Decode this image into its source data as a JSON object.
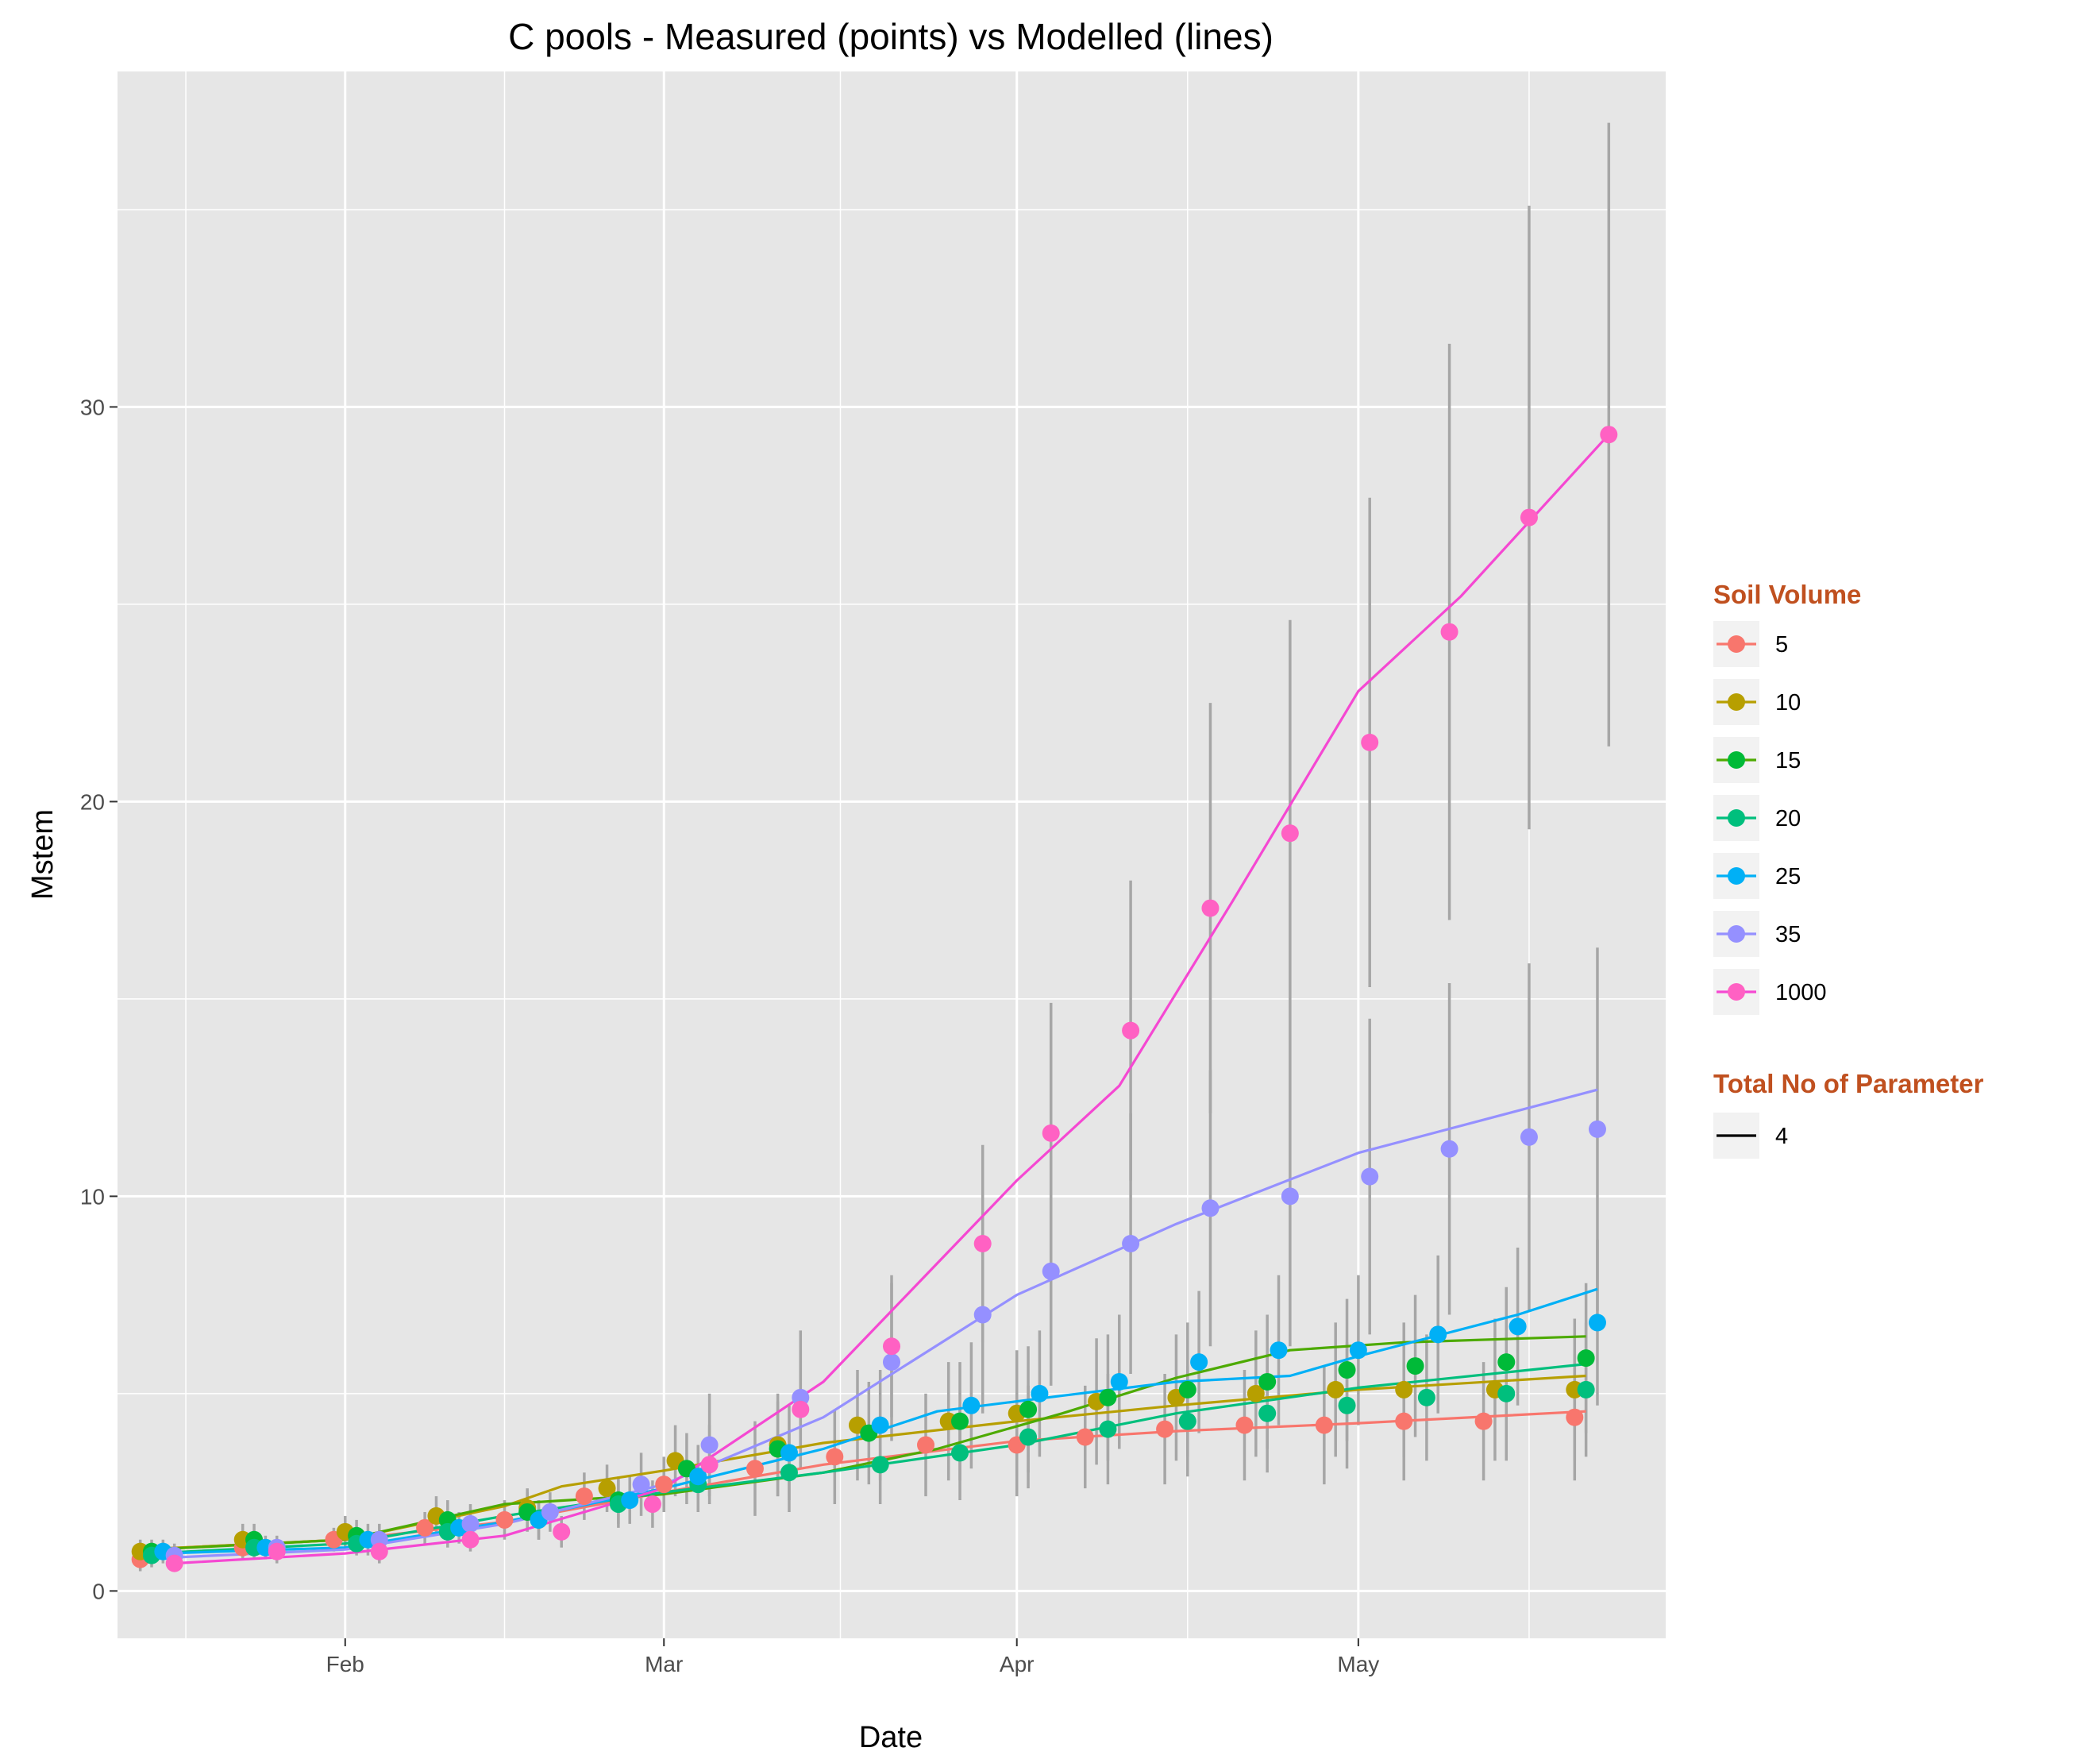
{
  "chart_data": {
    "type": "line",
    "title": "C pools - Measured (points) vs Modelled (lines)",
    "xlabel": "Date",
    "ylabel": "Mstem",
    "x_ticks": [
      {
        "label": "Feb",
        "date": "2017-02-01"
      },
      {
        "label": "Mar",
        "date": "2017-03-01"
      },
      {
        "label": "Apr",
        "date": "2017-04-01"
      },
      {
        "label": "May",
        "date": "2017-05-01"
      }
    ],
    "y_ticks": [
      "0",
      "10",
      "20",
      "30"
    ],
    "xlim": [
      "2017-01-12",
      "2017-05-28"
    ],
    "ylim": [
      -1.2,
      38.5
    ],
    "grid": true,
    "legend_position": "right",
    "legends": [
      {
        "title": "Soil Volume",
        "entries": [
          "5",
          "10",
          "15",
          "20",
          "25",
          "35",
          "1000"
        ]
      },
      {
        "title": "Total No of Parameter",
        "entries": [
          "4"
        ]
      }
    ],
    "errorbar_color": "#a6a6a6",
    "background_color": "#e6e6e6",
    "series": [
      {
        "name": "5",
        "color": "#F8766D",
        "points": [
          [
            "2017-01-14",
            0.8,
            0.3
          ],
          [
            "2017-01-23",
            1.1,
            0.3
          ],
          [
            "2017-01-31",
            1.3,
            0.3
          ],
          [
            "2017-02-08",
            1.6,
            0.4
          ],
          [
            "2017-02-15",
            1.8,
            0.5
          ],
          [
            "2017-02-22",
            2.4,
            0.6
          ],
          [
            "2017-03-01",
            2.7,
            0.7
          ],
          [
            "2017-03-09",
            3.1,
            1.2
          ],
          [
            "2017-03-16",
            3.4,
            1.2
          ],
          [
            "2017-03-24",
            3.7,
            1.3
          ],
          [
            "2017-04-01",
            3.7,
            1.3
          ],
          [
            "2017-04-07",
            3.9,
            1.3
          ],
          [
            "2017-04-14",
            4.1,
            1.4
          ],
          [
            "2017-04-21",
            4.2,
            1.4
          ],
          [
            "2017-04-28",
            4.2,
            1.5
          ],
          [
            "2017-05-05",
            4.3,
            1.5
          ],
          [
            "2017-05-12",
            4.3,
            1.5
          ],
          [
            "2017-05-20",
            4.4,
            1.6
          ]
        ],
        "line": [
          [
            "2017-01-14",
            1.05
          ],
          [
            "2017-02-01",
            1.3
          ],
          [
            "2017-02-15",
            1.75
          ],
          [
            "2017-03-01",
            2.5
          ],
          [
            "2017-03-15",
            3.2
          ],
          [
            "2017-04-01",
            3.8
          ],
          [
            "2017-04-15",
            4.05
          ],
          [
            "2017-05-01",
            4.25
          ],
          [
            "2017-05-21",
            4.55
          ]
        ]
      },
      {
        "name": "10",
        "color": "#B79F00",
        "points": [
          [
            "2017-01-14",
            1.0,
            0.3
          ],
          [
            "2017-01-23",
            1.3,
            0.4
          ],
          [
            "2017-02-01",
            1.5,
            0.4
          ],
          [
            "2017-02-09",
            1.9,
            0.5
          ],
          [
            "2017-02-17",
            2.1,
            0.5
          ],
          [
            "2017-02-24",
            2.6,
            0.6
          ],
          [
            "2017-03-02",
            3.3,
            0.9
          ],
          [
            "2017-03-11",
            3.7,
            1.3
          ],
          [
            "2017-03-18",
            4.2,
            1.4
          ],
          [
            "2017-03-26",
            4.3,
            1.5
          ],
          [
            "2017-04-01",
            4.5,
            1.6
          ],
          [
            "2017-04-08",
            4.8,
            1.6
          ],
          [
            "2017-04-15",
            4.9,
            1.6
          ],
          [
            "2017-04-22",
            5.0,
            1.6
          ],
          [
            "2017-04-29",
            5.1,
            1.7
          ],
          [
            "2017-05-05",
            5.1,
            1.7
          ],
          [
            "2017-05-13",
            5.1,
            1.8
          ],
          [
            "2017-05-20",
            5.1,
            1.8
          ]
        ],
        "line": [
          [
            "2017-01-14",
            1.05
          ],
          [
            "2017-02-01",
            1.3
          ],
          [
            "2017-02-15",
            2.15
          ],
          [
            "2017-02-20",
            2.65
          ],
          [
            "2017-03-01",
            3.05
          ],
          [
            "2017-03-15",
            3.75
          ],
          [
            "2017-04-01",
            4.3
          ],
          [
            "2017-04-15",
            4.7
          ],
          [
            "2017-05-01",
            5.1
          ],
          [
            "2017-05-21",
            5.45
          ]
        ]
      },
      {
        "name": "15",
        "color": "#00BA38",
        "line_color": "#4DAA00",
        "points": [
          [
            "2017-01-15",
            1.0,
            0.3
          ],
          [
            "2017-01-24",
            1.3,
            0.4
          ],
          [
            "2017-02-02",
            1.4,
            0.4
          ],
          [
            "2017-02-10",
            1.8,
            0.5
          ],
          [
            "2017-02-17",
            2.0,
            0.5
          ],
          [
            "2017-02-25",
            2.3,
            0.6
          ],
          [
            "2017-03-03",
            3.1,
            0.9
          ],
          [
            "2017-03-11",
            3.6,
            1.2
          ],
          [
            "2017-03-19",
            4.0,
            1.3
          ],
          [
            "2017-03-27",
            4.3,
            1.5
          ],
          [
            "2017-04-02",
            4.6,
            1.6
          ],
          [
            "2017-04-09",
            4.9,
            1.6
          ],
          [
            "2017-04-16",
            5.1,
            1.7
          ],
          [
            "2017-04-23",
            5.3,
            1.7
          ],
          [
            "2017-04-30",
            5.6,
            1.8
          ],
          [
            "2017-05-06",
            5.7,
            1.8
          ],
          [
            "2017-05-14",
            5.8,
            1.9
          ],
          [
            "2017-05-21",
            5.9,
            1.9
          ]
        ],
        "line": [
          [
            "2017-01-15",
            1.05
          ],
          [
            "2017-02-01",
            1.3
          ],
          [
            "2017-02-15",
            2.2
          ],
          [
            "2017-03-01",
            2.45
          ],
          [
            "2017-03-15",
            3.0
          ],
          [
            "2017-03-25",
            3.6
          ],
          [
            "2017-04-05",
            4.5
          ],
          [
            "2017-04-15",
            5.4
          ],
          [
            "2017-04-25",
            6.1
          ],
          [
            "2017-05-05",
            6.3
          ],
          [
            "2017-05-21",
            6.45
          ]
        ]
      },
      {
        "name": "20",
        "color": "#00BF7D",
        "points": [
          [
            "2017-01-15",
            0.9,
            0.3
          ],
          [
            "2017-01-24",
            1.1,
            0.3
          ],
          [
            "2017-02-02",
            1.2,
            0.3
          ],
          [
            "2017-02-10",
            1.5,
            0.4
          ],
          [
            "2017-02-18",
            1.8,
            0.5
          ],
          [
            "2017-02-25",
            2.2,
            0.6
          ],
          [
            "2017-03-04",
            2.7,
            0.7
          ],
          [
            "2017-03-12",
            3.0,
            1.0
          ],
          [
            "2017-03-20",
            3.2,
            1.0
          ],
          [
            "2017-03-27",
            3.5,
            1.2
          ],
          [
            "2017-04-02",
            3.9,
            1.3
          ],
          [
            "2017-04-09",
            4.1,
            1.4
          ],
          [
            "2017-04-16",
            4.3,
            1.4
          ],
          [
            "2017-04-23",
            4.5,
            1.5
          ],
          [
            "2017-04-30",
            4.7,
            1.6
          ],
          [
            "2017-05-07",
            4.9,
            1.6
          ],
          [
            "2017-05-14",
            5.0,
            1.7
          ],
          [
            "2017-05-21",
            5.1,
            1.7
          ]
        ],
        "line": [
          [
            "2017-01-15",
            0.95
          ],
          [
            "2017-02-01",
            1.2
          ],
          [
            "2017-02-15",
            1.9
          ],
          [
            "2017-03-01",
            2.5
          ],
          [
            "2017-03-15",
            3.0
          ],
          [
            "2017-04-01",
            3.7
          ],
          [
            "2017-04-15",
            4.5
          ],
          [
            "2017-05-01",
            5.15
          ],
          [
            "2017-05-21",
            5.75
          ]
        ]
      },
      {
        "name": "25",
        "color": "#00B0F6",
        "points": [
          [
            "2017-01-16",
            1.0,
            0.3
          ],
          [
            "2017-01-25",
            1.1,
            0.3
          ],
          [
            "2017-02-03",
            1.3,
            0.4
          ],
          [
            "2017-02-11",
            1.6,
            0.4
          ],
          [
            "2017-02-18",
            1.8,
            0.5
          ],
          [
            "2017-02-26",
            2.3,
            0.6
          ],
          [
            "2017-03-04",
            2.9,
            0.8
          ],
          [
            "2017-03-12",
            3.5,
            1.2
          ],
          [
            "2017-03-20",
            4.2,
            1.4
          ],
          [
            "2017-03-28",
            4.7,
            1.6
          ],
          [
            "2017-04-03",
            5.0,
            1.6
          ],
          [
            "2017-04-10",
            5.3,
            1.7
          ],
          [
            "2017-04-17",
            5.8,
            1.8
          ],
          [
            "2017-04-24",
            6.1,
            1.9
          ],
          [
            "2017-05-01",
            6.1,
            1.9
          ],
          [
            "2017-05-08",
            6.5,
            2.0
          ],
          [
            "2017-05-15",
            6.7,
            2.0
          ],
          [
            "2017-05-22",
            6.8,
            2.1
          ]
        ],
        "line": [
          [
            "2017-01-16",
            0.95
          ],
          [
            "2017-02-01",
            1.1
          ],
          [
            "2017-02-15",
            1.75
          ],
          [
            "2017-03-01",
            2.6
          ],
          [
            "2017-03-15",
            3.6
          ],
          [
            "2017-03-25",
            4.55
          ],
          [
            "2017-04-05",
            4.95
          ],
          [
            "2017-04-15",
            5.3
          ],
          [
            "2017-04-25",
            5.45
          ],
          [
            "2017-05-01",
            5.95
          ],
          [
            "2017-05-15",
            7.0
          ],
          [
            "2017-05-22",
            7.65
          ]
        ]
      },
      {
        "name": "35",
        "color": "#9590FF",
        "points": [
          [
            "2017-01-17",
            0.9,
            0.3
          ],
          [
            "2017-01-26",
            1.1,
            0.3
          ],
          [
            "2017-02-04",
            1.3,
            0.4
          ],
          [
            "2017-02-12",
            1.7,
            0.5
          ],
          [
            "2017-02-19",
            2.0,
            0.5
          ],
          [
            "2017-02-27",
            2.7,
            0.8
          ],
          [
            "2017-03-05",
            3.7,
            1.3
          ],
          [
            "2017-03-13",
            4.9,
            1.7
          ],
          [
            "2017-03-21",
            5.8,
            2.0
          ],
          [
            "2017-03-29",
            7.0,
            2.5
          ],
          [
            "2017-04-04",
            8.1,
            2.9
          ],
          [
            "2017-04-11",
            8.8,
            3.3
          ],
          [
            "2017-04-18",
            9.7,
            3.5
          ],
          [
            "2017-04-25",
            10.0,
            3.8
          ],
          [
            "2017-05-02",
            10.5,
            4.0
          ],
          [
            "2017-05-09",
            11.2,
            4.2
          ],
          [
            "2017-05-16",
            11.5,
            4.4
          ],
          [
            "2017-05-22",
            11.7,
            4.6
          ]
        ],
        "line": [
          [
            "2017-01-17",
            0.85
          ],
          [
            "2017-02-01",
            1.05
          ],
          [
            "2017-02-15",
            1.7
          ],
          [
            "2017-03-01",
            2.7
          ],
          [
            "2017-03-15",
            4.4
          ],
          [
            "2017-04-01",
            7.5
          ],
          [
            "2017-04-15",
            9.3
          ],
          [
            "2017-05-01",
            11.1
          ],
          [
            "2017-05-22",
            12.7
          ]
        ]
      },
      {
        "name": "1000",
        "color": "#FF61C3",
        "line_color": "#F548D2",
        "points": [
          [
            "2017-01-17",
            0.7,
            0.2
          ],
          [
            "2017-01-26",
            1.0,
            0.3
          ],
          [
            "2017-02-04",
            1.0,
            0.3
          ],
          [
            "2017-02-12",
            1.3,
            0.3
          ],
          [
            "2017-02-20",
            1.5,
            0.4
          ],
          [
            "2017-02-28",
            2.2,
            0.6
          ],
          [
            "2017-03-05",
            3.2,
            1.0
          ],
          [
            "2017-03-13",
            4.6,
            1.5
          ],
          [
            "2017-03-21",
            6.2,
            1.8
          ],
          [
            "2017-03-29",
            8.8,
            2.5
          ],
          [
            "2017-04-04",
            11.6,
            3.3
          ],
          [
            "2017-04-11",
            14.2,
            3.8
          ],
          [
            "2017-04-18",
            17.3,
            5.2
          ],
          [
            "2017-04-25",
            19.2,
            5.4
          ],
          [
            "2017-05-02",
            21.5,
            6.2
          ],
          [
            "2017-05-09",
            24.3,
            7.3
          ],
          [
            "2017-05-16",
            27.2,
            7.9
          ],
          [
            "2017-05-23",
            29.3,
            7.9
          ]
        ],
        "line": [
          [
            "2017-01-17",
            0.7
          ],
          [
            "2017-02-01",
            0.95
          ],
          [
            "2017-02-15",
            1.4
          ],
          [
            "2017-03-01",
            2.6
          ],
          [
            "2017-03-15",
            5.3
          ],
          [
            "2017-03-25",
            8.3
          ],
          [
            "2017-04-01",
            10.4
          ],
          [
            "2017-04-10",
            12.8
          ],
          [
            "2017-04-20",
            17.5
          ],
          [
            "2017-05-01",
            22.8
          ],
          [
            "2017-05-10",
            25.2
          ],
          [
            "2017-05-23",
            29.3
          ]
        ]
      }
    ]
  }
}
